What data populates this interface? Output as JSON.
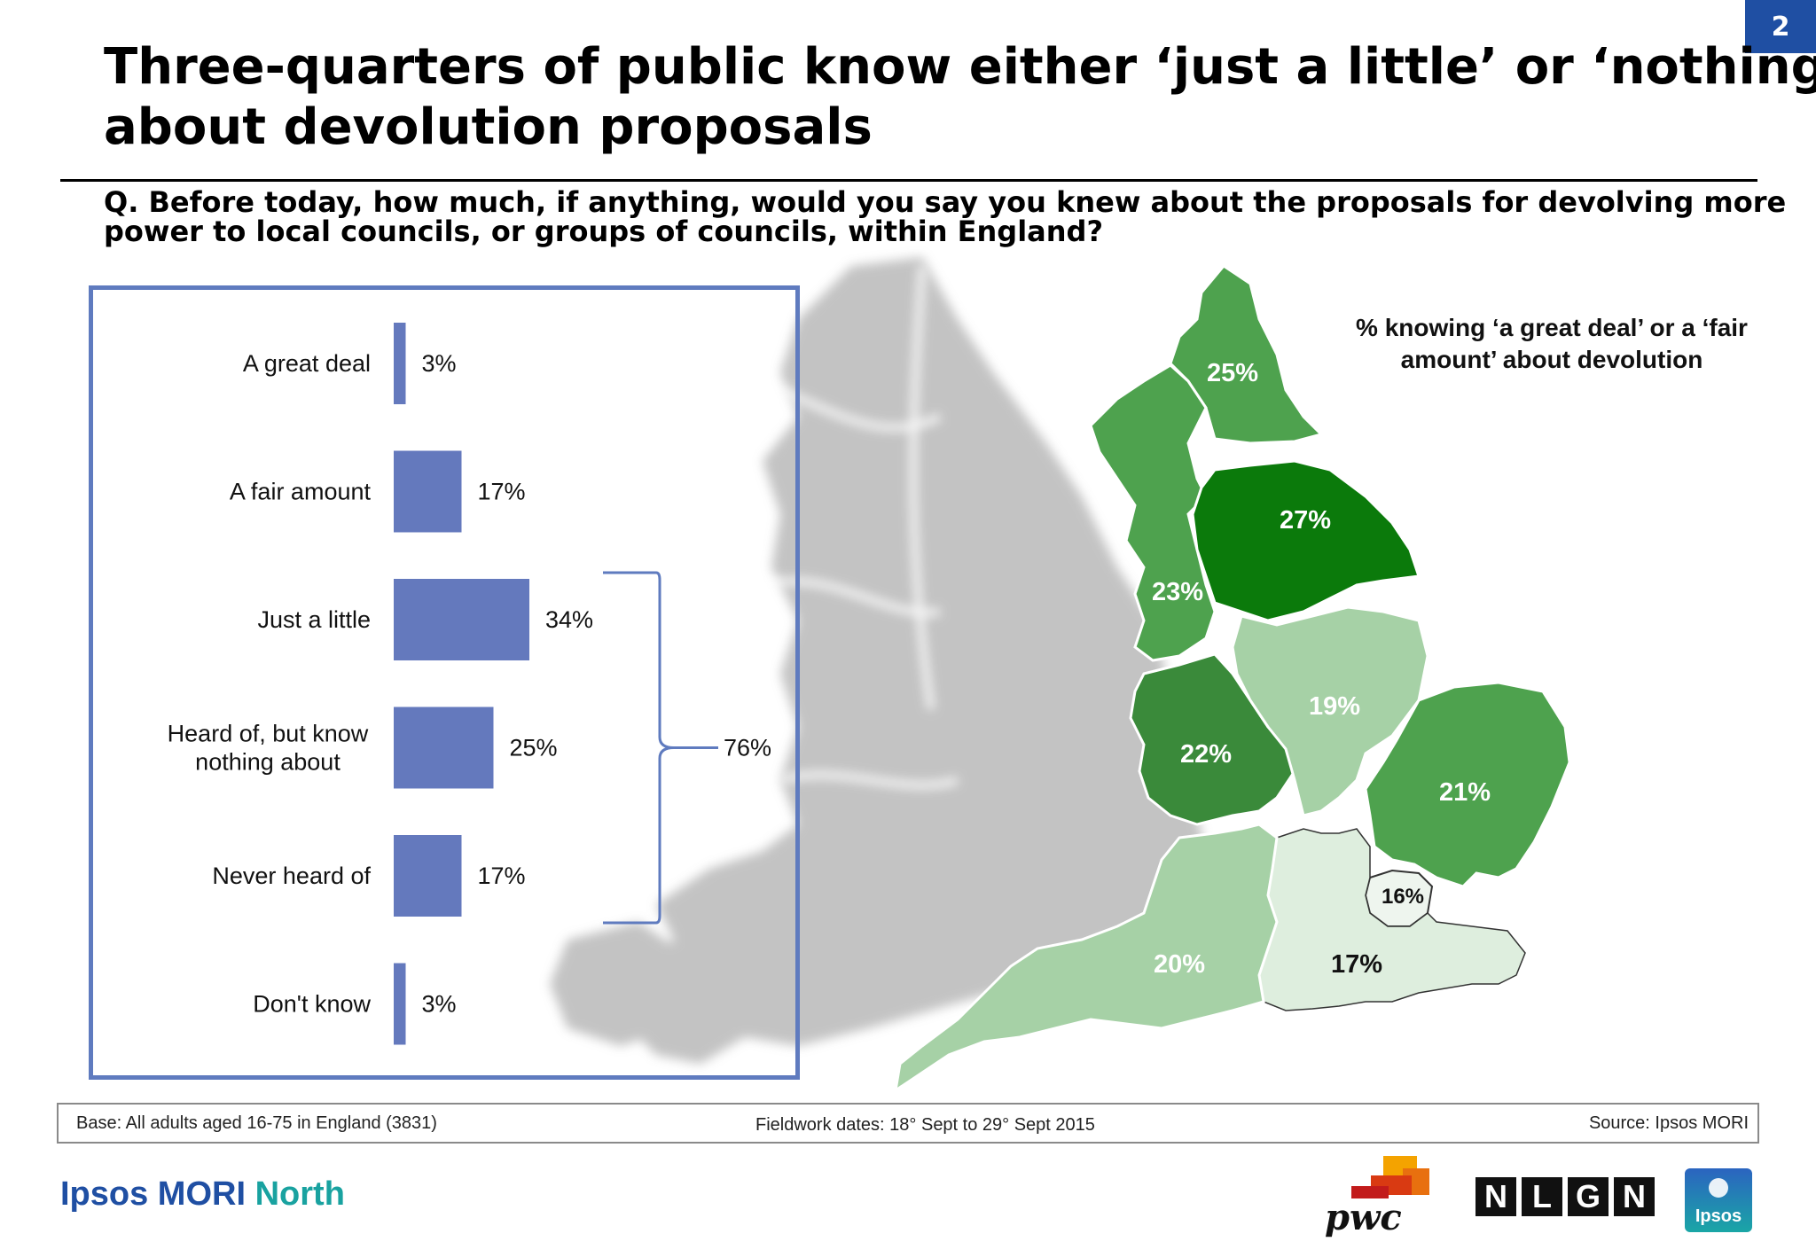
{
  "page_number": "2",
  "title": {
    "line1": "Three-quarters of public know either ‘just a little’ or ‘nothing’",
    "line2": "about devolution proposals"
  },
  "question": {
    "line1": "Q. Before today, how much, if anything, would you say you knew about the proposals for devolving more",
    "line2": "power to local councils, or groups of councils, within England?"
  },
  "chart_data": [
    {
      "type": "bar",
      "orientation": "horizontal",
      "categories": [
        "A great deal",
        "A fair amount",
        "Just a little",
        "Heard of, but know nothing about",
        "Never heard of",
        "Don't know"
      ],
      "category_lines": [
        [
          "A great deal"
        ],
        [
          "A fair amount"
        ],
        [
          "Just a little"
        ],
        [
          "Heard of, but know",
          "nothing about"
        ],
        [
          "Never heard of"
        ],
        [
          "Don't know"
        ]
      ],
      "values": [
        3,
        17,
        34,
        25,
        17,
        3
      ],
      "value_labels": [
        "3%",
        "17%",
        "34%",
        "25%",
        "17%",
        "3%"
      ],
      "bar_color": "#6479bd",
      "bracket": {
        "from_category": "Just a little",
        "to_category": "Never heard of",
        "label": "76%"
      }
    },
    {
      "type": "map",
      "title": "% knowing ‘a great deal’ or a ‘fair amount’ about devolution",
      "regions": [
        {
          "name": "North East",
          "value": 25,
          "label": "25%",
          "color": "#4ea24e"
        },
        {
          "name": "North West",
          "value": 23,
          "label": "23%",
          "color": "#4ea24e"
        },
        {
          "name": "Yorkshire and the Humber",
          "value": 27,
          "label": "27%",
          "color": "#0b7a0b"
        },
        {
          "name": "West Midlands",
          "value": 22,
          "label": "22%",
          "color": "#3a8a3a"
        },
        {
          "name": "East Midlands",
          "value": 19,
          "label": "19%",
          "color": "#a6d1a6"
        },
        {
          "name": "East of England",
          "value": 21,
          "label": "21%",
          "color": "#4ea24e"
        },
        {
          "name": "London",
          "value": 16,
          "label": "16%",
          "color": "#eef5ee"
        },
        {
          "name": "South East",
          "value": 17,
          "label": "17%",
          "color": "#deeede"
        },
        {
          "name": "South West",
          "value": 20,
          "label": "20%",
          "color": "#a6d1a6"
        }
      ]
    }
  ],
  "map_legend": {
    "line1": "% knowing ‘a great deal’ or a ‘fair",
    "line2": "amount’ about devolution"
  },
  "footer": {
    "base": "Base: All adults aged 16-75 in England (3831)",
    "fieldwork": "Fieldwork dates: 18° Sept to 29° Sept 2015",
    "source": "Source: Ipsos MORI"
  },
  "logos": {
    "ipsos_mori": "Ipsos MORI",
    "north": "North",
    "pwc": "pwc",
    "nlgn": [
      "N",
      "L",
      "G",
      "N"
    ],
    "ipsos": "Ipsos"
  }
}
